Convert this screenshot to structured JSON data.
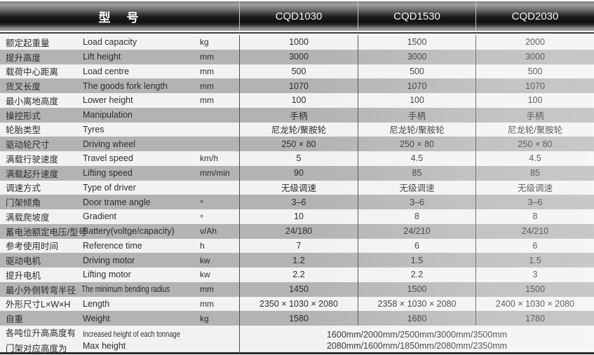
{
  "header": {
    "model_label": "型　号",
    "models": [
      "CQD1030",
      "CQD1530",
      "CQD2030"
    ]
  },
  "rows": [
    {
      "cn": "额定起重量",
      "en": "Load capacity",
      "unit": "kg",
      "values": [
        "1000",
        "1500",
        "2000"
      ]
    },
    {
      "cn": "提升高度",
      "en": "Lift height",
      "unit": "mm",
      "values": [
        "3000",
        "3000",
        "3000"
      ]
    },
    {
      "cn": "载荷中心距离",
      "en": "Load centre",
      "unit": "mm",
      "values": [
        "500",
        "500",
        "500"
      ]
    },
    {
      "cn": "货叉长度",
      "en": "The goods fork length",
      "unit": "mm",
      "values": [
        "1070",
        "1070",
        "1070"
      ]
    },
    {
      "cn": "最小离地高度",
      "en": "Lower height",
      "unit": "mm",
      "values": [
        "100",
        "100",
        "100"
      ]
    },
    {
      "cn": "操控形式",
      "en": "Manipulation",
      "unit": "",
      "values": [
        "手柄",
        "手柄",
        "手柄"
      ]
    },
    {
      "cn": "轮胎类型",
      "en": "Tyres",
      "unit": "",
      "values": [
        "尼龙轮/聚胺轮",
        "尼龙轮/聚胺轮",
        "尼龙轮/聚胺轮"
      ]
    },
    {
      "cn": "驱动轮尺寸",
      "en": "Driving wheel",
      "unit": "",
      "values": [
        "250 × 80",
        "250 × 80",
        "250 × 80"
      ]
    },
    {
      "cn": "满载行驶速度",
      "en": "Travel speed",
      "unit": "km/h",
      "values": [
        "5",
        "4.5",
        "4.5"
      ]
    },
    {
      "cn": "满载起升速度",
      "en": "Lifting speed",
      "unit": "mm/min",
      "values": [
        "90",
        "85",
        "85"
      ]
    },
    {
      "cn": "调速方式",
      "en": "Type of driver",
      "unit": "",
      "values": [
        "无级调速",
        "无级调速",
        "无级调速"
      ]
    },
    {
      "cn": "门架倾角",
      "en": "Door trame angle",
      "unit": "°",
      "values": [
        "3–6",
        "3–6",
        "3–6"
      ]
    },
    {
      "cn": "满载爬坡度",
      "en": "Gradient",
      "unit": "°",
      "values": [
        "10",
        "8",
        "8"
      ]
    },
    {
      "cn": "蓄电池额定电压/型号",
      "en": "Battery(voltge/capacity)",
      "unit": "v/Ah",
      "values": [
        "24/180",
        "24/210",
        "24/210"
      ]
    },
    {
      "cn": "参考使用时间",
      "en": "Reference time",
      "unit": "h",
      "values": [
        "7",
        "6",
        "6"
      ]
    },
    {
      "cn": "驱动电机",
      "en": "Driving motor",
      "unit": "kw",
      "values": [
        "1.2",
        "1.5",
        "1.5"
      ]
    },
    {
      "cn": "提升电机",
      "en": "Lifting motor",
      "unit": "kw",
      "values": [
        "2.2",
        "2.2",
        "3"
      ]
    },
    {
      "cn": "最小外侧转弯半径",
      "en": "The minimum bending radius",
      "unit": "mm",
      "values": [
        "1450",
        "1500",
        "1500"
      ]
    },
    {
      "cn": "外形尺寸L×W×H",
      "en": "Length",
      "unit": "mm",
      "values": [
        "2350 × 1030 × 2080",
        "2358 × 1030 × 2080",
        "2400 × 1030 × 2080"
      ]
    },
    {
      "cn": "自重",
      "en": "Weight",
      "unit": "kg",
      "values": [
        "1580",
        "1680",
        "1780"
      ]
    }
  ],
  "footer_row": {
    "cn_line1": "各吨位升高高度有",
    "cn_line2": "门架对应高度为",
    "en_line1": "Increased height of each tonnage",
    "en_line2": "Max height",
    "value_line1": "1600mm/2000mm/2500mm/3000mm/3500mm",
    "value_line2": "2080mm/1600mm/1850mm/2080mm/2350mm"
  },
  "colors": {
    "header_dark": "#101010",
    "header_separator": "#c4c4c4",
    "stripe_light": "#f2f2f2",
    "stripe_gray": "#b3b3b3",
    "column_separator": "#505050",
    "text": "#2d2d2d",
    "bottom_border": "#2c2c2c"
  }
}
